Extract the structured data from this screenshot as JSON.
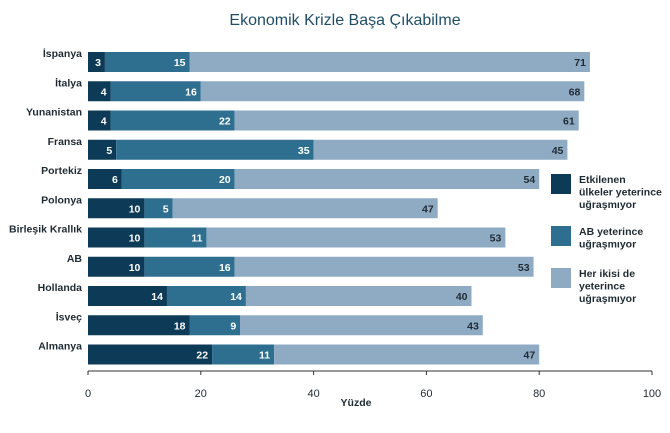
{
  "chart_data": {
    "type": "bar",
    "orientation": "horizontal",
    "stacked": true,
    "title": "Ekonomik Krizle Başa Çıkabilme",
    "xlabel": "Yüzde",
    "ylabel": "",
    "xlim": [
      0,
      100
    ],
    "xticks": [
      "0",
      "20",
      "40",
      "60",
      "80",
      "100"
    ],
    "grid": false,
    "legend_position": "right",
    "categories": [
      "İspanya",
      "İtalya",
      "Yunanistan",
      "Fransa",
      "Portekiz",
      "Polonya",
      "Birleşik Krallık",
      "AB",
      "Hollanda",
      "İsveç",
      "Almanya"
    ],
    "series": [
      {
        "name": "Etkilenen ülkeler yeterince uğraşmıyor",
        "legend_lines": [
          "Etkilenen",
          "ülkeler yeterince",
          "uğraşmıyor"
        ],
        "color": "#0d3a56",
        "text_color": "#ffffff",
        "values": [
          3,
          4,
          4,
          5,
          6,
          10,
          10,
          10,
          14,
          18,
          22
        ]
      },
      {
        "name": "AB yeterince uğraşmıyor",
        "legend_lines": [
          "AB yeterince",
          "uğraşmıyor"
        ],
        "color": "#2e6f90",
        "text_color": "#ffffff",
        "values": [
          15,
          16,
          22,
          35,
          20,
          5,
          11,
          16,
          14,
          9,
          11
        ]
      },
      {
        "name": "Her ikisi de yeterince uğraşmıyor",
        "legend_lines": [
          "Her ikisi de",
          "yeterince",
          "uğraşmıyor"
        ],
        "color": "#8fabc4",
        "text_color": "#1f2b33",
        "values": [
          71,
          68,
          61,
          45,
          54,
          47,
          53,
          53,
          40,
          43,
          47
        ]
      }
    ]
  }
}
